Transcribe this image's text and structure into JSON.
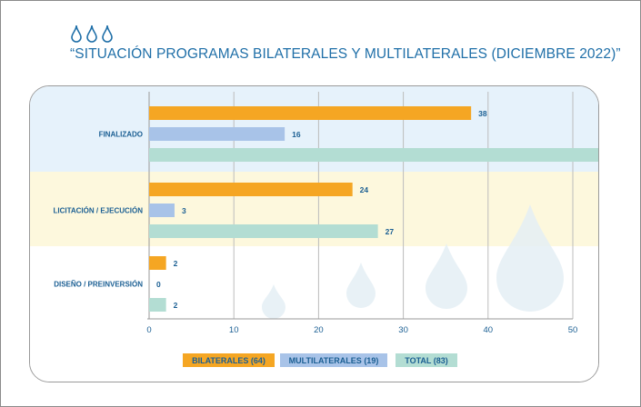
{
  "header": {
    "title": "“SITUACIÓN PROGRAMAS BILATERALES Y MULTILATERALES (DICIEMBRE 2022)”",
    "icon": "water-drops-icon"
  },
  "chart_data": {
    "type": "bar",
    "orientation": "horizontal",
    "title": "“SITUACIÓN PROGRAMAS BILATERALES Y MULTILATERALES (DICIEMBRE 2022)”",
    "categories": [
      "FINALIZADO",
      "LICITACIÓN / EJECUCIÓN",
      "DISEÑO / PREINVERSIÓN"
    ],
    "series": [
      {
        "name": "BILATERALES (64)",
        "values": [
          38,
          24,
          2
        ],
        "color": "#f5a623"
      },
      {
        "name": "MULTILATERALES (19)",
        "values": [
          16,
          3,
          0
        ],
        "color": "#a8c3e8"
      },
      {
        "name": "TOTAL (83)",
        "values": [
          54,
          27,
          2
        ],
        "color": "#b3ddd3"
      }
    ],
    "xlim": [
      0,
      50
    ],
    "xticks": [
      0,
      10,
      20,
      30,
      40,
      50
    ],
    "grid": true,
    "legend": "bottom",
    "band_colors": [
      "#e6f2fb",
      "#fdf8dd",
      "#ffffff"
    ],
    "label_color": "#1b5f93",
    "grid_color": "#bcbcbc"
  }
}
